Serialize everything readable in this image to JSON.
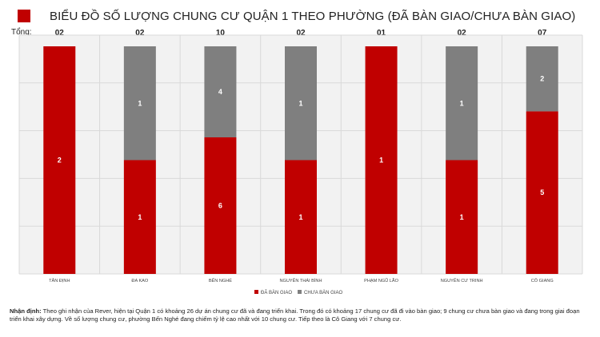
{
  "header": {
    "title": "BIỂU ĐỒ SỐ LƯỢNG CHUNG CƯ QUẬN 1 THEO PHƯỜNG (ĐÃ BÀN GIAO/CHƯA BÀN GIAO)",
    "totals_label": "Tổng:"
  },
  "chart_data": {
    "type": "bar",
    "stacked": true,
    "title": "BIỂU ĐỒ SỐ LƯỢNG CHUNG CƯ QUẬN 1 THEO PHƯỜNG (ĐÃ BÀN GIAO/CHƯA BÀN GIAO)",
    "categories": [
      "TÂN ĐỊNH",
      "ĐA KAO",
      "BẾN NGHÉ",
      "NGUYỄN THÁI BÌNH",
      "PHẠM NGŨ LÃO",
      "NGUYỄN CƯ TRINH",
      "CÔ GIANG"
    ],
    "totals": [
      "02",
      "02",
      "10",
      "02",
      "01",
      "02",
      "07"
    ],
    "series": [
      {
        "name": "ĐÃ BÀN GIAO",
        "color": "#c00000",
        "values": [
          2,
          1,
          6,
          1,
          1,
          1,
          5
        ]
      },
      {
        "name": "CHƯA BÀN GIAO",
        "color": "#7f7f7f",
        "values": [
          0,
          1,
          4,
          1,
          0,
          1,
          2
        ]
      }
    ],
    "normalized": true,
    "grid": true,
    "legend": "bottom-center",
    "xlabel": "",
    "ylabel": ""
  },
  "note": {
    "label": "Nhận định:",
    "text": "Theo ghi nhận của Rever, hiện tại Quận 1 có khoảng 26 dự án chung cư đã và đang triển khai. Trong đó có khoảng 17 chung cư đã đi vào bàn giao; 9 chung cư chưa bàn giao và đang trong giai đoạn triển khai xây dựng. Về số lượng chung cư, phường Bến Nghé đang chiếm tỷ lệ cao nhất với 10 chung cư. Tiếp theo là Cô Giang với 7 chung cư."
  }
}
